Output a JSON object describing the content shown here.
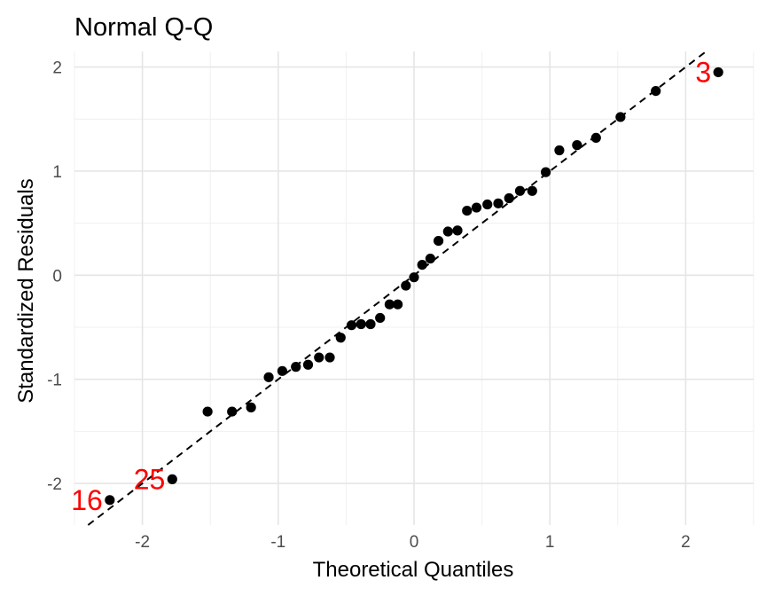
{
  "chart_data": {
    "type": "scatter",
    "title": "Normal Q-Q",
    "xlabel": "Theoretical Quantiles",
    "ylabel": "Standardized Residuals",
    "xlim": [
      -2.5,
      2.5
    ],
    "ylim": [
      -2.4,
      2.15
    ],
    "x_ticks": [
      -2,
      -1,
      0,
      1,
      2
    ],
    "y_ticks": [
      -2,
      -1,
      0,
      1,
      2
    ],
    "x_tick_labels": [
      "-2",
      "-1",
      "0",
      "1",
      "2"
    ],
    "y_tick_labels": [
      "-2",
      "-1",
      "0",
      "1",
      "2"
    ],
    "grid": true,
    "reference_line": {
      "style": "dashed",
      "color": "#000000",
      "slope": 1.0,
      "intercept": 0.0
    },
    "point_color": "#000000",
    "label_color": "#ff0000",
    "points": [
      {
        "x": -2.24,
        "y": -2.16
      },
      {
        "x": -1.78,
        "y": -1.96
      },
      {
        "x": -1.52,
        "y": -1.31
      },
      {
        "x": -1.34,
        "y": -1.31
      },
      {
        "x": -1.2,
        "y": -1.27
      },
      {
        "x": -1.07,
        "y": -0.98
      },
      {
        "x": -0.97,
        "y": -0.92
      },
      {
        "x": -0.87,
        "y": -0.88
      },
      {
        "x": -0.78,
        "y": -0.86
      },
      {
        "x": -0.7,
        "y": -0.79
      },
      {
        "x": -0.62,
        "y": -0.79
      },
      {
        "x": -0.54,
        "y": -0.6
      },
      {
        "x": -0.46,
        "y": -0.48
      },
      {
        "x": -0.39,
        "y": -0.47
      },
      {
        "x": -0.32,
        "y": -0.47
      },
      {
        "x": -0.25,
        "y": -0.41
      },
      {
        "x": -0.18,
        "y": -0.28
      },
      {
        "x": -0.12,
        "y": -0.28
      },
      {
        "x": -0.06,
        "y": -0.1
      },
      {
        "x": 0.0,
        "y": -0.02
      },
      {
        "x": 0.06,
        "y": 0.1
      },
      {
        "x": 0.12,
        "y": 0.16
      },
      {
        "x": 0.18,
        "y": 0.33
      },
      {
        "x": 0.25,
        "y": 0.42
      },
      {
        "x": 0.32,
        "y": 0.43
      },
      {
        "x": 0.39,
        "y": 0.62
      },
      {
        "x": 0.46,
        "y": 0.65
      },
      {
        "x": 0.54,
        "y": 0.68
      },
      {
        "x": 0.62,
        "y": 0.69
      },
      {
        "x": 0.7,
        "y": 0.74
      },
      {
        "x": 0.78,
        "y": 0.81
      },
      {
        "x": 0.87,
        "y": 0.81
      },
      {
        "x": 0.97,
        "y": 0.99
      },
      {
        "x": 1.07,
        "y": 1.2
      },
      {
        "x": 1.2,
        "y": 1.25
      },
      {
        "x": 1.34,
        "y": 1.32
      },
      {
        "x": 1.52,
        "y": 1.52
      },
      {
        "x": 1.78,
        "y": 1.77
      },
      {
        "x": 2.24,
        "y": 1.95
      }
    ],
    "annotations": [
      {
        "text": "16",
        "x": -2.24,
        "y": -2.16
      },
      {
        "text": "25",
        "x": -1.78,
        "y": -1.96
      },
      {
        "text": "3",
        "x": 2.24,
        "y": 1.95
      }
    ]
  }
}
